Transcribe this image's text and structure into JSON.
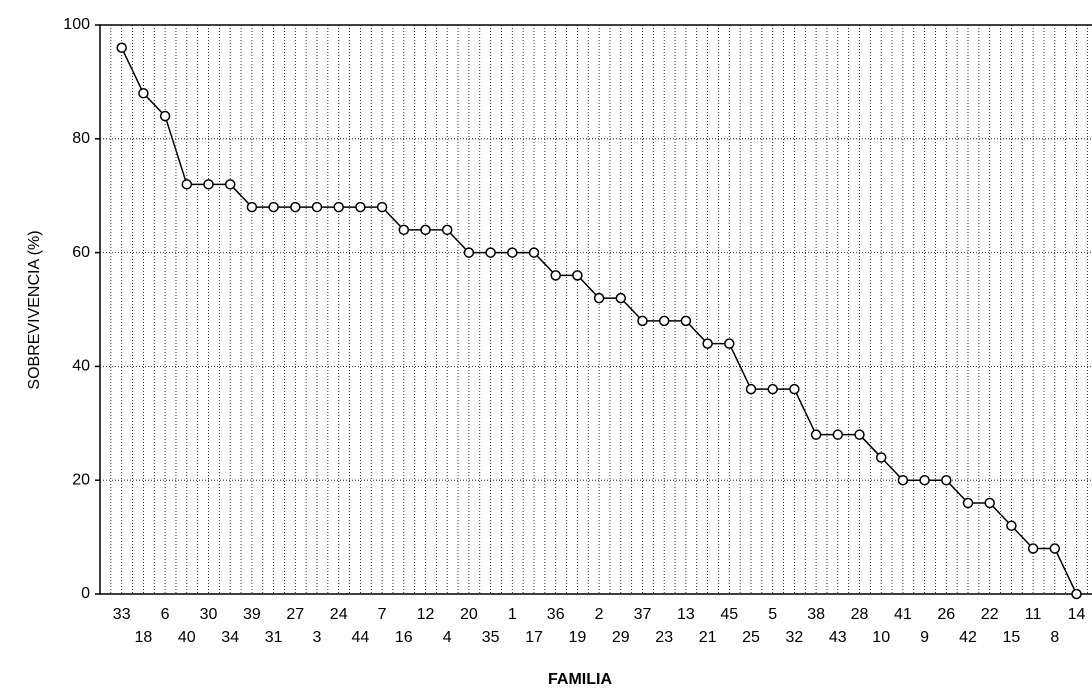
{
  "chart_data": {
    "type": "line",
    "xlabel": "FAMILIA",
    "ylabel": "SOBREVIVENCIA (%)",
    "categories": [
      "33",
      "18",
      "6",
      "40",
      "30",
      "34",
      "39",
      "31",
      "27",
      "3",
      "24",
      "44",
      "7",
      "16",
      "12",
      "4",
      "20",
      "35",
      "1",
      "17",
      "36",
      "19",
      "2",
      "29",
      "37",
      "23",
      "13",
      "21",
      "45",
      "25",
      "5",
      "32",
      "38",
      "43",
      "28",
      "10",
      "41",
      "9",
      "26",
      "42",
      "22",
      "15",
      "11",
      "8",
      "14"
    ],
    "values": [
      96,
      88,
      84,
      72,
      72,
      72,
      68,
      68,
      68,
      68,
      68,
      68,
      68,
      64,
      64,
      64,
      60,
      60,
      60,
      60,
      56,
      56,
      52,
      52,
      48,
      48,
      48,
      44,
      44,
      36,
      36,
      36,
      28,
      28,
      28,
      24,
      20,
      20,
      20,
      16,
      16,
      12,
      8,
      8,
      0
    ],
    "color": "#000000",
    "ylim": [
      0,
      100
    ],
    "yticks": [
      0,
      20,
      40,
      60,
      80,
      100
    ],
    "grid": true
  }
}
